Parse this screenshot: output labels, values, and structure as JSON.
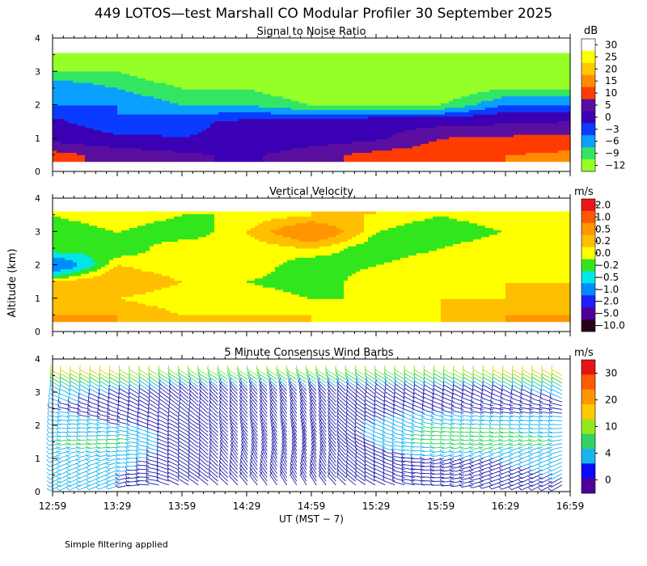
{
  "figure": {
    "title": "449 LOTOS—test Marshall CO Modular Profiler 30 September 2025",
    "ylabel": "Altitude (km)",
    "xlabel": "UT  (MST − 7)",
    "time_ticks": [
      "12:59",
      "13:29",
      "13:59",
      "14:29",
      "14:59",
      "15:29",
      "15:59",
      "16:29",
      "16:59"
    ],
    "altitude_ticks": [
      "0",
      "1",
      "2",
      "3",
      "4"
    ],
    "footnote": "Simple filtering applied"
  },
  "chart_data": [
    {
      "type": "heatmap",
      "title": "Signal to Noise Ratio",
      "xlabel": "UT  (MST − 7)",
      "ylabel": "Altitude (km)",
      "xlim": [
        "12:59",
        "16:59"
      ],
      "ylim": [
        0,
        4
      ],
      "colorbar": {
        "unit": "dB",
        "labels": [
          "30",
          "25",
          "20",
          "15",
          "10",
          "5",
          "0",
          "−3",
          "−6",
          "−9",
          "−12"
        ],
        "colors": [
          "#ffffff",
          "#ffff00",
          "#ffc800",
          "#ff8c00",
          "#ff3c00",
          "#5a0fa0",
          "#3c00b4",
          "#0a3cff",
          "#0aa0ff",
          "#32e664",
          "#96ff28"
        ]
      },
      "time": [
        "12:59",
        "13:29",
        "13:59",
        "14:29",
        "14:59",
        "15:29",
        "15:59",
        "16:29",
        "16:59"
      ],
      "altitude_km": [
        0.5,
        1.0,
        1.5,
        2.0,
        2.5,
        3.0,
        3.5
      ],
      "values_db": [
        [
          12,
          8,
          6,
          4,
          8,
          12,
          13,
          15,
          16
        ],
        [
          3,
          1,
          0,
          1,
          2,
          4,
          10,
          11,
          12
        ],
        [
          1,
          -3,
          -1,
          1,
          2,
          3,
          3,
          4,
          5
        ],
        [
          -3,
          -3,
          -6,
          -6,
          -9,
          -9,
          -9,
          -3,
          -3
        ],
        [
          -3,
          -6,
          -9,
          -9,
          -12,
          -12,
          -12,
          -9,
          -9
        ],
        [
          -9,
          -9,
          -12,
          -12,
          -12,
          -12,
          -12,
          -12,
          -12
        ],
        [
          -12,
          -12,
          -12,
          -12,
          -12,
          -12,
          -12,
          -12,
          -12
        ]
      ]
    },
    {
      "type": "heatmap",
      "title": "Vertical Velocity",
      "xlabel": "UT  (MST − 7)",
      "ylabel": "Altitude (km)",
      "xlim": [
        "12:59",
        "16:59"
      ],
      "ylim": [
        0,
        4
      ],
      "colorbar": {
        "unit": "m/s",
        "labels": [
          "2.0",
          "1.0",
          "0.5",
          "0.2",
          "0.0",
          "−0.2",
          "−0.5",
          "−1.0",
          "−2.0",
          "−5.0",
          "−10.0"
        ],
        "colors": [
          "#f01414",
          "#ff5a00",
          "#ff9600",
          "#ffbe00",
          "#ffff00",
          "#32e61e",
          "#00e6e6",
          "#008cff",
          "#1e1eff",
          "#50009a",
          "#28001e"
        ]
      },
      "time": [
        "12:59",
        "13:29",
        "13:59",
        "14:29",
        "14:59",
        "15:29",
        "15:59",
        "16:29",
        "16:59"
      ],
      "altitude_km": [
        0.5,
        1.0,
        1.5,
        2.0,
        2.5,
        3.0,
        3.5
      ],
      "values_ms": [
        [
          0.5,
          0.5,
          0.2,
          0.2,
          0.2,
          0.0,
          0.2,
          0.5,
          0.5
        ],
        [
          0.5,
          0.2,
          0.0,
          0.2,
          0.0,
          0.0,
          0.2,
          0.2,
          0.5
        ],
        [
          0.2,
          0.5,
          0.2,
          0.0,
          -0.2,
          0.2,
          0.0,
          0.2,
          0.2
        ],
        [
          -1.0,
          0.2,
          0.0,
          0.2,
          -0.2,
          0.0,
          0.2,
          0.0,
          0.2
        ],
        [
          0.0,
          -0.2,
          0.2,
          0.0,
          0.2,
          -0.2,
          0.0,
          0.2,
          0.0
        ],
        [
          -0.2,
          0.0,
          -0.2,
          0.2,
          1.0,
          0.0,
          -0.2,
          0.0,
          0.2
        ],
        [
          0.0,
          0.2,
          0.0,
          0.0,
          0.2,
          0.2,
          0.0,
          0.2,
          0.0
        ]
      ]
    },
    {
      "type": "scatter",
      "title": "5 Minute Consensus Wind Barbs",
      "xlabel": "UT  (MST − 7)",
      "ylabel": "Altitude (km)",
      "xlim": [
        "12:59",
        "16:59"
      ],
      "ylim": [
        0,
        4
      ],
      "colorbar": {
        "unit": "m/s",
        "labels": [
          "30",
          "20",
          "10",
          "4",
          "0"
        ],
        "colors": [
          "#e61414",
          "#ff5a00",
          "#ff9600",
          "#ffc800",
          "#96e61e",
          "#32d264",
          "#19b4f0",
          "#0a0aff",
          "#50009a"
        ]
      },
      "time": [
        "12:59",
        "13:29",
        "13:59",
        "14:29",
        "14:59",
        "15:29",
        "15:59",
        "16:29",
        "16:59"
      ],
      "altitude_km": [
        0.5,
        1.0,
        1.5,
        2.0,
        2.5,
        3.0,
        3.5
      ],
      "speed_ms": [
        [
          4,
          4,
          3,
          3,
          3,
          3,
          3,
          3,
          4
        ],
        [
          5,
          5,
          3,
          3,
          2,
          3,
          4,
          4,
          5
        ],
        [
          6,
          7,
          3,
          3,
          2,
          4,
          7,
          7,
          6
        ],
        [
          5,
          4,
          3,
          3,
          3,
          4,
          6,
          6,
          5
        ],
        [
          4,
          3,
          3,
          3,
          3,
          3,
          3,
          3,
          3
        ],
        [
          5,
          4,
          3,
          3,
          3,
          3,
          3,
          3,
          5
        ],
        [
          12,
          12,
          10,
          10,
          10,
          10,
          10,
          12,
          12
        ]
      ],
      "direction_deg": [
        [
          240,
          250,
          300,
          320,
          330,
          300,
          270,
          250,
          240
        ],
        [
          250,
          260,
          300,
          330,
          340,
          300,
          260,
          250,
          250
        ],
        [
          260,
          270,
          300,
          330,
          340,
          290,
          270,
          260,
          260
        ],
        [
          270,
          280,
          300,
          320,
          330,
          300,
          280,
          270,
          270
        ],
        [
          280,
          290,
          310,
          320,
          330,
          300,
          290,
          280,
          280
        ],
        [
          300,
          300,
          310,
          320,
          320,
          310,
          300,
          300,
          300
        ],
        [
          300,
          300,
          300,
          300,
          300,
          300,
          300,
          300,
          300
        ]
      ]
    }
  ]
}
